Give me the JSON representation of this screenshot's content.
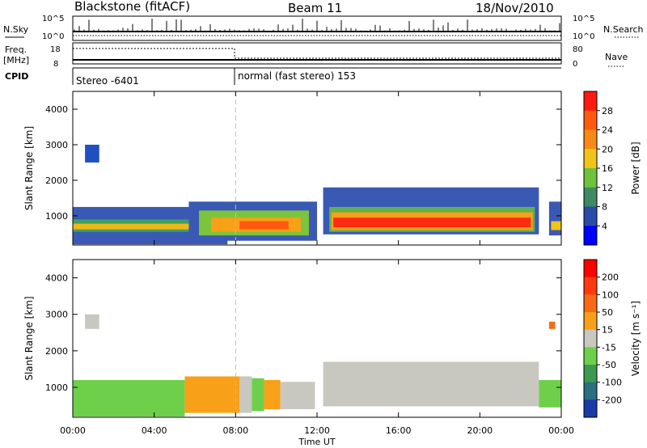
{
  "header": {
    "radar": "Blackstone (fitACF)",
    "beam": "Beam 11",
    "date": "18/Nov/2010"
  },
  "top_panels": {
    "nsky_label": "N.Sky",
    "nsky_ticks": [
      "10^5",
      "10^0"
    ],
    "nsearch_label": "N.Search",
    "nsearch_ticks": [
      "10^5",
      "10^0"
    ],
    "freq_label": "Freq.",
    "freq_unit": "[MHz]",
    "freq_ticks": [
      "18",
      "8"
    ],
    "nave_label": "Nave",
    "nave_ticks": [
      "80",
      "0"
    ],
    "cpid_label": "CPID",
    "cpid_segments": [
      {
        "label": "Stereo -6401",
        "start_hour": 0,
        "end_hour": 8
      },
      {
        "label": "normal (fast stereo) 153",
        "start_hour": 8,
        "end_hour": 24
      }
    ]
  },
  "chart_data": [
    {
      "type": "heatmap",
      "title": "",
      "xlabel": "",
      "ylabel": "Slant Range [km]",
      "xlim": [
        0,
        24
      ],
      "ylim": [
        180,
        4500
      ],
      "x_ticks": [
        "00:00",
        "04:00",
        "08:00",
        "12:00",
        "16:00",
        "20:00",
        "00:00"
      ],
      "y_ticks": [
        "1000",
        "2000",
        "3000",
        "4000"
      ],
      "y_tick_values": [
        1000,
        2000,
        3000,
        4000
      ],
      "colorbar": {
        "label": "Power [dB]",
        "ticks": [
          "4",
          "8",
          "12",
          "16",
          "20",
          "24",
          "28"
        ],
        "colors": [
          "#0000ff",
          "#2a4ca8",
          "#3e8a62",
          "#6ec23c",
          "#f0c418",
          "#f88a14",
          "#ff5a10",
          "#ff1a10"
        ]
      },
      "regions": [
        {
          "t0": 0,
          "t1": 7.6,
          "r0": 200,
          "r1": 1250,
          "color": "#3a59b5"
        },
        {
          "t0": 0,
          "t1": 7.6,
          "r0": 550,
          "r1": 900,
          "color": "#40a060"
        },
        {
          "t0": 0,
          "t1": 7.6,
          "r0": 620,
          "r1": 780,
          "color": "#f0b818"
        },
        {
          "t0": 5.7,
          "t1": 12.0,
          "r0": 300,
          "r1": 1400,
          "color": "#3a59b5"
        },
        {
          "t0": 6.2,
          "t1": 11.6,
          "r0": 450,
          "r1": 1150,
          "color": "#7cc43c"
        },
        {
          "t0": 6.8,
          "t1": 11.2,
          "r0": 550,
          "r1": 950,
          "color": "#f8a018"
        },
        {
          "t0": 8.2,
          "t1": 10.6,
          "r0": 620,
          "r1": 850,
          "color": "#ff5a10"
        },
        {
          "t0": 12.3,
          "t1": 22.9,
          "r0": 480,
          "r1": 1800,
          "color": "#3a59b5"
        },
        {
          "t0": 12.6,
          "t1": 22.7,
          "r0": 550,
          "r1": 1250,
          "color": "#60b050"
        },
        {
          "t0": 12.7,
          "t1": 22.6,
          "r0": 600,
          "r1": 1100,
          "color": "#f8a018"
        },
        {
          "t0": 12.8,
          "t1": 22.5,
          "r0": 680,
          "r1": 950,
          "color": "#ff2a10"
        },
        {
          "t0": 0.6,
          "t1": 1.3,
          "r0": 2500,
          "r1": 3000,
          "color": "#2050c0"
        },
        {
          "t0": 23.4,
          "t1": 24,
          "r0": 450,
          "r1": 1400,
          "color": "#3a59b5"
        },
        {
          "t0": 23.5,
          "t1": 24,
          "r0": 600,
          "r1": 850,
          "color": "#f0c418"
        }
      ]
    },
    {
      "type": "heatmap",
      "title": "",
      "xlabel": "Time UT",
      "ylabel": "Slant Range [km]",
      "xlim": [
        0,
        24
      ],
      "ylim": [
        180,
        4500
      ],
      "x_ticks": [
        "00:00",
        "04:00",
        "08:00",
        "12:00",
        "16:00",
        "20:00",
        "00:00"
      ],
      "y_ticks": [
        "1000",
        "2000",
        "3000",
        "4000"
      ],
      "y_tick_values": [
        1000,
        2000,
        3000,
        4000
      ],
      "colorbar": {
        "label": "Velocity [m s⁻¹]",
        "ticks": [
          "200",
          "100",
          "50",
          "15",
          "-15",
          "-50",
          "-100",
          "-200"
        ],
        "colors": [
          "#1a3aa8",
          "#2a7080",
          "#3a9a50",
          "#6ed04a",
          "#c8c8c0",
          "#f8a018",
          "#f86a14",
          "#ff3a10",
          "#ff0000"
        ]
      },
      "regions": [
        {
          "t0": 0,
          "t1": 5.5,
          "r0": 200,
          "r1": 1200,
          "color": "#6ed04a"
        },
        {
          "t0": 5.5,
          "t1": 8.2,
          "r0": 300,
          "r1": 1300,
          "color": "#f8a018"
        },
        {
          "t0": 8.2,
          "t1": 8.8,
          "r0": 300,
          "r1": 1300,
          "color": "#c8c8c0"
        },
        {
          "t0": 8.8,
          "t1": 9.4,
          "r0": 350,
          "r1": 1250,
          "color": "#6ed04a"
        },
        {
          "t0": 9.4,
          "t1": 10.2,
          "r0": 400,
          "r1": 1200,
          "color": "#f8a018"
        },
        {
          "t0": 10.2,
          "t1": 11.9,
          "r0": 400,
          "r1": 1150,
          "color": "#c8c8c0"
        },
        {
          "t0": 12.3,
          "t1": 22.9,
          "r0": 480,
          "r1": 1700,
          "color": "#c8c8c0"
        },
        {
          "t0": 22.9,
          "t1": 24,
          "r0": 450,
          "r1": 1200,
          "color": "#6ed04a"
        },
        {
          "t0": 0.6,
          "t1": 1.3,
          "r0": 2600,
          "r1": 3000,
          "color": "#c8c8c0"
        },
        {
          "t0": 23.4,
          "t1": 23.7,
          "r0": 2600,
          "r1": 2800,
          "color": "#f86a14"
        }
      ]
    }
  ]
}
